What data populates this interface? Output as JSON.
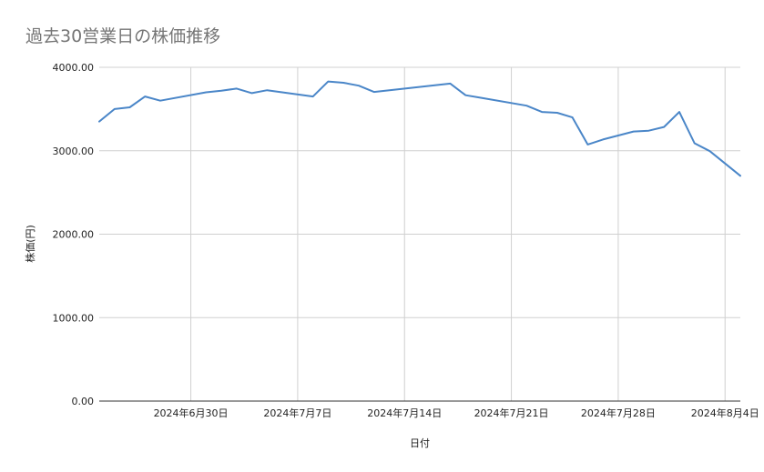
{
  "chart_data": {
    "type": "line",
    "title": "過去30営業日の株価推移",
    "xlabel": "日付",
    "ylabel": "株価(円)",
    "ylim": [
      0,
      4000
    ],
    "y_ticks": [
      "0.00",
      "1000.00",
      "2000.00",
      "3000.00",
      "4000.00"
    ],
    "x_ticks": [
      {
        "date": "2024-06-30",
        "label": "2024年6月30日"
      },
      {
        "date": "2024-07-07",
        "label": "2024年7月7日"
      },
      {
        "date": "2024-07-14",
        "label": "2024年7月14日"
      },
      {
        "date": "2024-07-21",
        "label": "2024年7月21日"
      },
      {
        "date": "2024-07-28",
        "label": "2024年7月28日"
      },
      {
        "date": "2024-08-04",
        "label": "2024年8月4日"
      }
    ],
    "x_range": [
      "2024-06-24",
      "2024-08-05"
    ],
    "grid": true,
    "legend": "none",
    "line_color": "#4a86c8",
    "series": [
      {
        "x": [
          "2024-06-24",
          "2024-06-25",
          "2024-06-26",
          "2024-06-27",
          "2024-06-28",
          "2024-07-01",
          "2024-07-02",
          "2024-07-03",
          "2024-07-04",
          "2024-07-05",
          "2024-07-08",
          "2024-07-09",
          "2024-07-10",
          "2024-07-11",
          "2024-07-12",
          "2024-07-17",
          "2024-07-18",
          "2024-07-19",
          "2024-07-22",
          "2024-07-23",
          "2024-07-24",
          "2024-07-25",
          "2024-07-26",
          "2024-07-27",
          "2024-07-29",
          "2024-07-30",
          "2024-07-31",
          "2024-08-01",
          "2024-08-02",
          "2024-08-03",
          "2024-08-05"
        ],
        "values": [
          3350,
          3500,
          3520,
          3650,
          3600,
          3700,
          3720,
          3745,
          3690,
          3725,
          3650,
          3830,
          3815,
          3780,
          3705,
          3805,
          3665,
          3635,
          3540,
          3465,
          3455,
          3400,
          3075,
          3135,
          3230,
          3240,
          3285,
          3465,
          3090,
          2995,
          2700
        ]
      }
    ]
  }
}
